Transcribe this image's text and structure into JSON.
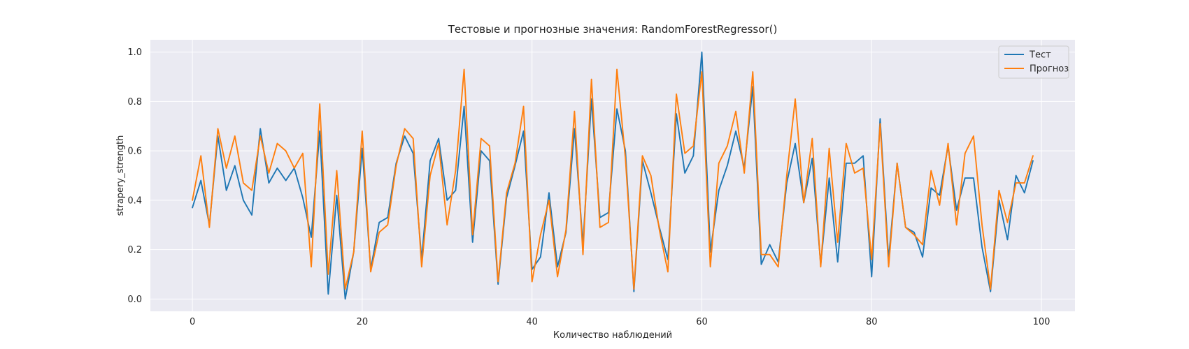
{
  "chart_data": {
    "type": "line",
    "title": "Тестовые и прогнозные значения: RandomForestRegressor()",
    "xlabel": "Количество наблюдений",
    "ylabel": "strapery_strength",
    "xlim": [
      -4.95,
      103.95
    ],
    "ylim": [
      -0.05,
      1.05
    ],
    "xticks": [
      0,
      20,
      40,
      60,
      80,
      100
    ],
    "yticks": [
      0.0,
      0.2,
      0.4,
      0.6,
      0.8,
      1.0
    ],
    "xtick_labels": [
      "0",
      "20",
      "40",
      "60",
      "80",
      "100"
    ],
    "ytick_labels": [
      "0.0",
      "0.2",
      "0.4",
      "0.6",
      "0.8",
      "1.0"
    ],
    "grid": true,
    "legend_position": "top-right",
    "background_color": "#EAEAF2",
    "x": [
      0,
      1,
      2,
      3,
      4,
      5,
      6,
      7,
      8,
      9,
      10,
      11,
      12,
      13,
      14,
      15,
      16,
      17,
      18,
      19,
      20,
      21,
      22,
      23,
      24,
      25,
      26,
      27,
      28,
      29,
      30,
      31,
      32,
      33,
      34,
      35,
      36,
      37,
      38,
      39,
      40,
      41,
      42,
      43,
      44,
      45,
      46,
      47,
      48,
      49,
      50,
      51,
      52,
      53,
      54,
      55,
      56,
      57,
      58,
      59,
      60,
      61,
      62,
      63,
      64,
      65,
      66,
      67,
      68,
      69,
      70,
      71,
      72,
      73,
      74,
      75,
      76,
      77,
      78,
      79,
      80,
      81,
      82,
      83,
      84,
      85,
      86,
      87,
      88,
      89,
      90,
      91,
      92,
      93,
      94,
      95,
      96,
      97,
      98,
      99
    ],
    "series": [
      {
        "name": "Тест",
        "color": "#1F77B4",
        "values": [
          0.37,
          0.48,
          0.3,
          0.66,
          0.44,
          0.54,
          0.4,
          0.34,
          0.69,
          0.47,
          0.53,
          0.48,
          0.53,
          0.41,
          0.25,
          0.68,
          0.02,
          0.42,
          0.0,
          0.19,
          0.61,
          0.12,
          0.31,
          0.33,
          0.55,
          0.66,
          0.59,
          0.16,
          0.56,
          0.65,
          0.4,
          0.44,
          0.78,
          0.23,
          0.6,
          0.56,
          0.06,
          0.41,
          0.54,
          0.68,
          0.12,
          0.17,
          0.43,
          0.13,
          0.27,
          0.69,
          0.22,
          0.81,
          0.33,
          0.35,
          0.77,
          0.6,
          0.03,
          0.56,
          0.43,
          0.29,
          0.16,
          0.75,
          0.51,
          0.58,
          1.0,
          0.19,
          0.44,
          0.54,
          0.68,
          0.53,
          0.86,
          0.14,
          0.22,
          0.15,
          0.47,
          0.63,
          0.39,
          0.57,
          0.14,
          0.49,
          0.15,
          0.55,
          0.55,
          0.58,
          0.09,
          0.73,
          0.16,
          0.55,
          0.29,
          0.27,
          0.17,
          0.45,
          0.42,
          0.62,
          0.36,
          0.49,
          0.49,
          0.21,
          0.03,
          0.4,
          0.24,
          0.5,
          0.43,
          0.56
        ]
      },
      {
        "name": "Прогноз",
        "color": "#FF7F0E",
        "values": [
          0.4,
          0.58,
          0.29,
          0.69,
          0.53,
          0.66,
          0.47,
          0.44,
          0.66,
          0.51,
          0.63,
          0.6,
          0.53,
          0.59,
          0.13,
          0.79,
          0.1,
          0.52,
          0.04,
          0.19,
          0.68,
          0.11,
          0.27,
          0.3,
          0.54,
          0.69,
          0.65,
          0.13,
          0.5,
          0.63,
          0.3,
          0.52,
          0.93,
          0.26,
          0.65,
          0.62,
          0.07,
          0.43,
          0.55,
          0.78,
          0.07,
          0.26,
          0.4,
          0.09,
          0.28,
          0.76,
          0.18,
          0.89,
          0.29,
          0.31,
          0.93,
          0.57,
          0.04,
          0.58,
          0.5,
          0.28,
          0.11,
          0.83,
          0.59,
          0.62,
          0.92,
          0.13,
          0.55,
          0.62,
          0.76,
          0.51,
          0.92,
          0.18,
          0.18,
          0.13,
          0.5,
          0.81,
          0.39,
          0.65,
          0.13,
          0.61,
          0.23,
          0.63,
          0.51,
          0.53,
          0.16,
          0.71,
          0.13,
          0.55,
          0.29,
          0.26,
          0.22,
          0.52,
          0.38,
          0.63,
          0.3,
          0.59,
          0.66,
          0.3,
          0.04,
          0.44,
          0.31,
          0.47,
          0.47,
          0.58
        ]
      }
    ]
  }
}
